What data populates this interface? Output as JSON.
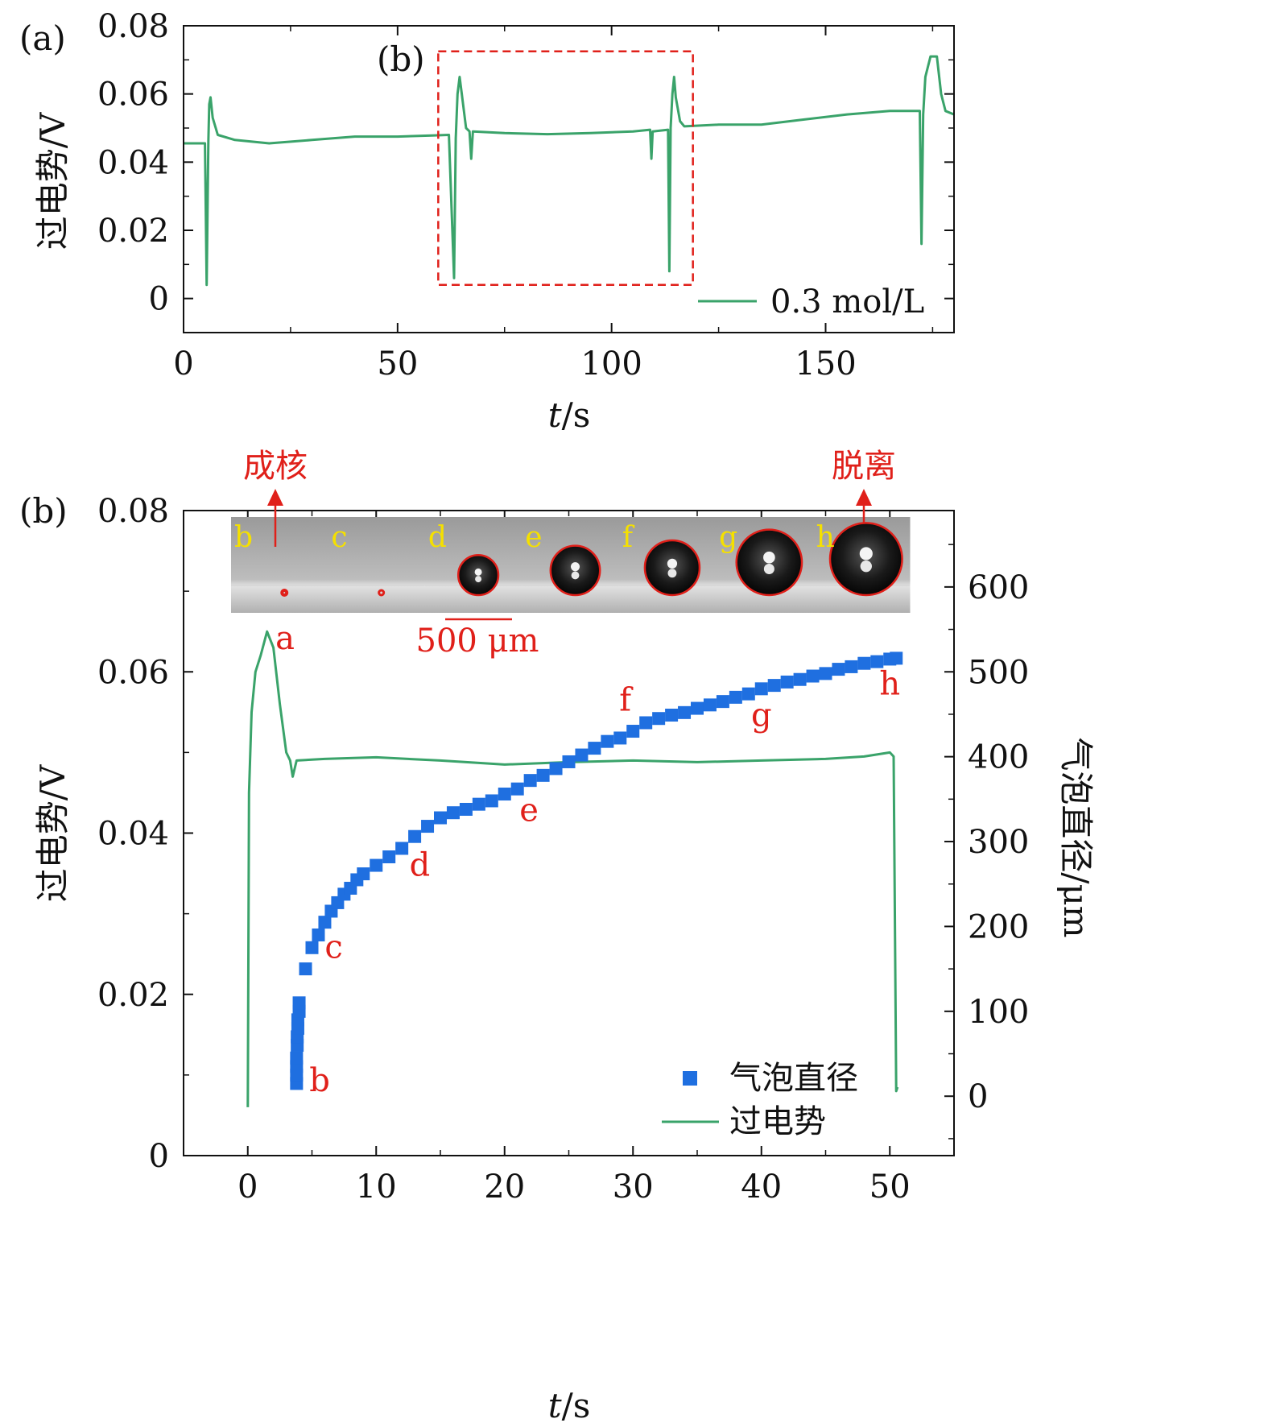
{
  "colors": {
    "voltage": "#3aa36a",
    "diameter": "#1f6fe0",
    "annotation": "#e0201a",
    "frame_label": "#f5e000"
  },
  "chart_data": [
    {
      "id": "a",
      "type": "line",
      "panel_label": "(a)",
      "box_label": "(b)",
      "xlabel_italic": "t",
      "xlabel_unit": "/s",
      "ylabel": "过电势/V",
      "xlim": [
        0,
        180
      ],
      "ylim": [
        -0.01,
        0.08
      ],
      "xticks": [
        "0",
        "50",
        "100",
        "150"
      ],
      "yticks": [
        "0",
        "0.02",
        "0.04",
        "0.06",
        "0.08"
      ],
      "box_range": {
        "x": [
          59.5,
          119
        ],
        "y": [
          0.004,
          0.0725
        ]
      },
      "legend": "0.3 mol/L",
      "series": [
        {
          "name": "0.3 mol/L",
          "points": [
            [
              0,
              0.0455
            ],
            [
              5,
              0.0455
            ],
            [
              5.4,
              0.004
            ],
            [
              5.8,
              0.046
            ],
            [
              6,
              0.057
            ],
            [
              6.3,
              0.059
            ],
            [
              6.8,
              0.053
            ],
            [
              8,
              0.048
            ],
            [
              12,
              0.0465
            ],
            [
              20,
              0.0455
            ],
            [
              30,
              0.0465
            ],
            [
              40,
              0.0475
            ],
            [
              50,
              0.0475
            ],
            [
              58,
              0.0478
            ],
            [
              62,
              0.048
            ],
            [
              63.2,
              0.006
            ],
            [
              63.6,
              0.047
            ],
            [
              64,
              0.06
            ],
            [
              64.5,
              0.065
            ],
            [
              65,
              0.06
            ],
            [
              66,
              0.05
            ],
            [
              66.8,
              0.049
            ],
            [
              67.2,
              0.041
            ],
            [
              67.6,
              0.049
            ],
            [
              75,
              0.0485
            ],
            [
              85,
              0.0482
            ],
            [
              95,
              0.0485
            ],
            [
              105,
              0.049
            ],
            [
              109,
              0.0495
            ],
            [
              109.3,
              0.041
            ],
            [
              109.6,
              0.049
            ],
            [
              113.2,
              0.0495
            ],
            [
              113.5,
              0.008
            ],
            [
              113.8,
              0.05
            ],
            [
              114.2,
              0.06
            ],
            [
              114.6,
              0.065
            ],
            [
              115,
              0.059
            ],
            [
              116,
              0.052
            ],
            [
              117,
              0.0505
            ],
            [
              125,
              0.051
            ],
            [
              135,
              0.051
            ],
            [
              145,
              0.0525
            ],
            [
              155,
              0.054
            ],
            [
              165,
              0.055
            ],
            [
              172,
              0.055
            ],
            [
              172.4,
              0.016
            ],
            [
              172.8,
              0.054
            ],
            [
              173.3,
              0.065
            ],
            [
              174.5,
              0.071
            ],
            [
              176,
              0.071
            ],
            [
              177,
              0.06
            ],
            [
              178,
              0.055
            ],
            [
              180,
              0.054
            ]
          ]
        }
      ]
    },
    {
      "id": "b",
      "type": "line+scatter",
      "panel_label": "(b)",
      "xlabel_italic": "t",
      "xlabel_unit": "/s",
      "ylabel": "过电势/V",
      "ylabel_right": "气泡直径/μm",
      "xlim": [
        -5,
        55
      ],
      "ylim": [
        0,
        0.08
      ],
      "ylim_right": [
        -70,
        690
      ],
      "xticks": [
        "0",
        "10",
        "20",
        "30",
        "40",
        "50"
      ],
      "yticks": [
        "0",
        "0.02",
        "0.04",
        "0.06",
        "0.08"
      ],
      "yticks_right": [
        "0",
        "100",
        "200",
        "300",
        "400",
        "500",
        "600"
      ],
      "legend": [
        "气泡直径",
        "过电势"
      ],
      "arrow_nucleation": "成核",
      "arrow_detach": "脱离",
      "scalebar": "500 μm",
      "frame_labels": [
        "b",
        "c",
        "d",
        "e",
        "f",
        "g",
        "h"
      ],
      "frame_radius_um": [
        3,
        8,
        150,
        185,
        205,
        245,
        270
      ],
      "point_labels": [
        {
          "text": "a",
          "t": 2.9,
          "v": 0.0628
        },
        {
          "text": "b",
          "t": 5.6,
          "v": 0.008
        },
        {
          "text": "c",
          "t": 6.7,
          "v": 0.0245
        },
        {
          "text": "d",
          "t": 13.4,
          "v": 0.0347
        },
        {
          "text": "e",
          "t": 21.9,
          "v": 0.0415
        },
        {
          "text": "f",
          "t": 29.4,
          "v": 0.0552
        },
        {
          "text": "g",
          "t": 40,
          "v": 0.0533
        },
        {
          "text": "h",
          "t": 50,
          "v": 0.0572
        }
      ],
      "series": [
        {
          "name": "过电势",
          "points": [
            [
              0,
              0.006
            ],
            [
              0.1,
              0.045
            ],
            [
              0.3,
              0.055
            ],
            [
              0.6,
              0.06
            ],
            [
              1,
              0.062
            ],
            [
              1.5,
              0.065
            ],
            [
              2,
              0.063
            ],
            [
              2.5,
              0.056
            ],
            [
              3,
              0.05
            ],
            [
              3.3,
              0.049
            ],
            [
              3.5,
              0.047
            ],
            [
              3.8,
              0.049
            ],
            [
              6,
              0.0492
            ],
            [
              10,
              0.0494
            ],
            [
              15,
              0.049
            ],
            [
              20,
              0.0485
            ],
            [
              25,
              0.0488
            ],
            [
              30,
              0.049
            ],
            [
              35,
              0.0488
            ],
            [
              40,
              0.049
            ],
            [
              45,
              0.0492
            ],
            [
              48,
              0.0495
            ],
            [
              50,
              0.05
            ],
            [
              50.3,
              0.0495
            ],
            [
              50.5,
              0.008
            ],
            [
              50.6,
              0.0085
            ]
          ]
        },
        {
          "name": "气泡直径",
          "t": [
            3.8,
            3.8,
            3.8,
            3.8,
            3.85,
            3.85,
            3.9,
            3.9,
            4,
            4,
            4.5,
            5,
            5.5,
            6,
            6.5,
            7,
            7.5,
            8,
            8.5,
            9,
            10,
            11,
            12,
            13,
            14,
            15,
            16,
            17,
            18,
            19,
            20,
            21,
            22,
            23,
            24,
            25,
            26,
            27,
            28,
            29,
            30,
            31,
            32,
            33,
            34,
            35,
            36,
            37,
            38,
            39,
            40,
            41,
            42,
            43,
            44,
            45,
            46,
            47,
            48,
            49,
            50,
            50.5
          ],
          "d_um": [
            15,
            25,
            35,
            45,
            60,
            70,
            80,
            90,
            100,
            110,
            150,
            175,
            190,
            205,
            218,
            228,
            238,
            245,
            255,
            262,
            272,
            282,
            292,
            306,
            318,
            328,
            334,
            338,
            344,
            348,
            356,
            362,
            372,
            378,
            386,
            394,
            402,
            410,
            418,
            422,
            430,
            440,
            445,
            449,
            452,
            457,
            461,
            465,
            470,
            474,
            480,
            484,
            488,
            491,
            495,
            498,
            503,
            506,
            510,
            512,
            515,
            516
          ]
        }
      ]
    }
  ]
}
